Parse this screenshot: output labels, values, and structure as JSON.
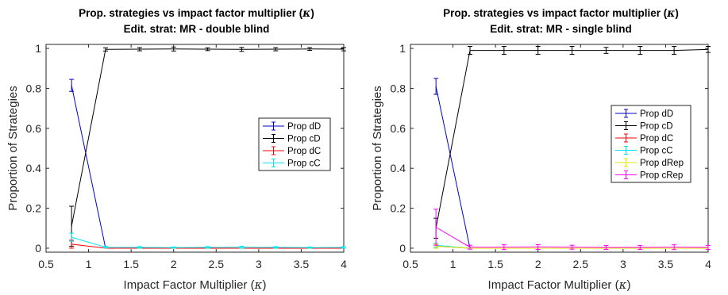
{
  "charts": [
    {
      "id": "left",
      "chart_data": {
        "type": "line",
        "title_line1": "Prop. strategies vs impact factor multiplier (",
        "title_symbol": "κ",
        "title_line1_end": ")",
        "title_line2": "Edit. strat: MR - double blind",
        "xlabel": "Impact Factor Multiplier (",
        "xlabel_symbol": "κ",
        "xlabel_end": ")",
        "ylabel": "Proportion of Strategies",
        "xlim": [
          0.5,
          4
        ],
        "ylim": [
          -0.02,
          1.02
        ],
        "xticks": [
          0.5,
          1,
          1.5,
          2,
          2.5,
          3,
          3.5,
          4
        ],
        "xtick_labels": [
          "0.5",
          "1",
          "1.5",
          "2",
          "2.5",
          "3",
          "3.5",
          "4"
        ],
        "yticks": [
          0,
          0.2,
          0.4,
          0.6,
          0.8,
          1
        ],
        "ytick_labels": [
          "0",
          "0.2",
          "0.4",
          "0.6",
          "0.8",
          "1"
        ],
        "legend_position": "right",
        "x": [
          0.8,
          1.2,
          1.6,
          2.0,
          2.4,
          2.8,
          3.2,
          3.6,
          4.0
        ],
        "series": [
          {
            "name": "Prop dD",
            "color": "#0000cc",
            "values": [
              0.815,
              0.0,
              0.0,
              0.0,
              0.0,
              0.0,
              0.0,
              0.0,
              0.0
            ],
            "errors": [
              0.03,
              0.0,
              0.0,
              0.0,
              0.0,
              0.0,
              0.0,
              0.0,
              0.0
            ]
          },
          {
            "name": "Prop cD",
            "color": "#000000",
            "values": [
              0.11,
              0.995,
              0.996,
              0.997,
              0.996,
              0.995,
              0.996,
              0.997,
              0.996
            ],
            "errors": [
              0.1,
              0.008,
              0.008,
              0.01,
              0.007,
              0.01,
              0.008,
              0.007,
              0.008
            ]
          },
          {
            "name": "Prop dC",
            "color": "#ff0000",
            "values": [
              0.02,
              0.0,
              0.0,
              0.0,
              0.0,
              0.0,
              0.0,
              0.0,
              0.0
            ],
            "errors": [
              0.02,
              0.0,
              0.0,
              0.0,
              0.0,
              0.0,
              0.0,
              0.0,
              0.0
            ]
          },
          {
            "name": "Prop cC",
            "color": "#00e5ee",
            "values": [
              0.055,
              0.005,
              0.004,
              0.003,
              0.004,
              0.005,
              0.004,
              0.003,
              0.004
            ],
            "errors": [
              0.02,
              0.004,
              0.004,
              0.003,
              0.004,
              0.005,
              0.004,
              0.003,
              0.004
            ]
          }
        ]
      }
    },
    {
      "id": "right",
      "chart_data": {
        "type": "line",
        "title_line1": "Prop. strategies vs impact factor multiplier (",
        "title_symbol": "κ",
        "title_line1_end": ")",
        "title_line2": "Edit. strat: MR - single blind",
        "xlabel": "Impact Factor Multiplier (",
        "xlabel_symbol": "κ",
        "xlabel_end": ")",
        "ylabel": "Proportion of Strategies",
        "xlim": [
          0.5,
          4
        ],
        "ylim": [
          -0.02,
          1.02
        ],
        "xticks": [
          0.5,
          1,
          1.5,
          2,
          2.5,
          3,
          3.5,
          4
        ],
        "xtick_labels": [
          "0.5",
          "1",
          "1.5",
          "2",
          "2.5",
          "3",
          "3.5",
          "4"
        ],
        "yticks": [
          0,
          0.2,
          0.4,
          0.6,
          0.8,
          1
        ],
        "ytick_labels": [
          "0",
          "0.2",
          "0.4",
          "0.6",
          "0.8",
          "1"
        ],
        "legend_position": "right",
        "x": [
          0.8,
          1.2,
          1.6,
          2.0,
          2.4,
          2.8,
          3.2,
          3.6,
          4.0
        ],
        "series": [
          {
            "name": "Prop dD",
            "color": "#0000cc",
            "values": [
              0.81,
              0.0,
              0.0,
              0.0,
              0.0,
              0.0,
              0.0,
              0.0,
              0.0
            ],
            "errors": [
              0.04,
              0.0,
              0.0,
              0.0,
              0.0,
              0.0,
              0.0,
              0.0,
              0.0
            ]
          },
          {
            "name": "Prop cD",
            "color": "#000000",
            "values": [
              0.1,
              0.99,
              0.99,
              0.99,
              0.99,
              0.99,
              0.99,
              0.99,
              0.995
            ],
            "errors": [
              0.05,
              0.02,
              0.02,
              0.02,
              0.02,
              0.015,
              0.02,
              0.02,
              0.015
            ]
          },
          {
            "name": "Prop dC",
            "color": "#ff0000",
            "values": [
              0.01,
              0.0,
              0.0,
              0.0,
              0.0,
              0.0,
              0.0,
              0.0,
              0.0
            ],
            "errors": [
              0.01,
              0.0,
              0.0,
              0.0,
              0.0,
              0.0,
              0.0,
              0.0,
              0.0
            ]
          },
          {
            "name": "Prop cC",
            "color": "#00e5ee",
            "values": [
              0.015,
              0.0,
              0.0,
              0.0,
              0.0,
              0.0,
              0.0,
              0.0,
              0.0
            ],
            "errors": [
              0.01,
              0.0,
              0.0,
              0.0,
              0.0,
              0.0,
              0.0,
              0.0,
              0.0
            ]
          },
          {
            "name": "Prop dRep",
            "color": "#e6e600",
            "values": [
              0.01,
              0.0,
              0.0,
              0.0,
              0.0,
              0.0,
              0.0,
              0.0,
              0.0
            ],
            "errors": [
              0.01,
              0.0,
              0.0,
              0.0,
              0.0,
              0.0,
              0.0,
              0.0,
              0.0
            ]
          },
          {
            "name": "Prop cRep",
            "color": "#ff00ff",
            "values": [
              0.105,
              0.005,
              0.005,
              0.006,
              0.005,
              0.004,
              0.004,
              0.005,
              0.004
            ],
            "errors": [
              0.09,
              0.01,
              0.012,
              0.012,
              0.01,
              0.01,
              0.01,
              0.012,
              0.01
            ]
          }
        ]
      }
    }
  ]
}
